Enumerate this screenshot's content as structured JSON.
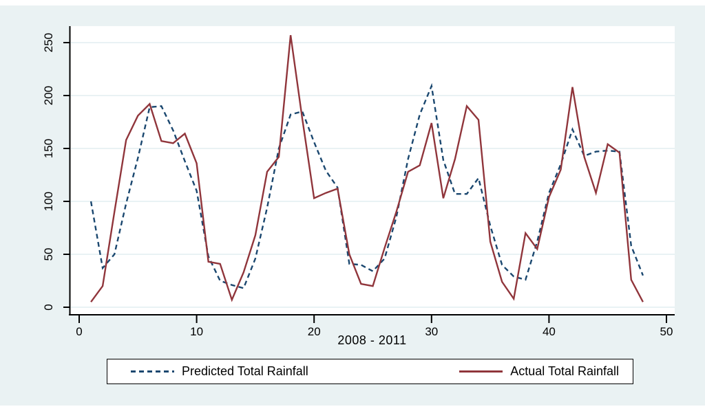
{
  "figure": {
    "background_color": "#eaf2f3",
    "plot_background_color": "#ffffff",
    "gridline_color": "#e2edf0",
    "axis_color": "#000000"
  },
  "chart_data": {
    "type": "line",
    "title": "",
    "xlabel": "2008 - 2011",
    "ylabel": "",
    "x_ticks": [
      0,
      10,
      20,
      30,
      40,
      50
    ],
    "y_ticks": [
      0,
      50,
      100,
      150,
      200,
      250
    ],
    "xlim": [
      -0.85,
      50.7
    ],
    "ylim": [
      -7,
      266
    ],
    "grid": "horizontal",
    "legend_position": "bottom",
    "x_start": 1,
    "x_step": 1,
    "series": [
      {
        "name": "Predicted Total Rainfall",
        "color": "#1a476f",
        "style": "dashed",
        "values": [
          100,
          37,
          50,
          98,
          141,
          189,
          190,
          167,
          138,
          110,
          48,
          25,
          21,
          18,
          46,
          94,
          150,
          182,
          185,
          156,
          129,
          113,
          41,
          40,
          34,
          46,
          85,
          140,
          182,
          209,
          139,
          107,
          107,
          122,
          77,
          40,
          29,
          26,
          62,
          108,
          135,
          168,
          143,
          147,
          148,
          147,
          58,
          30
        ]
      },
      {
        "name": "Actual Total Rainfall",
        "color": "#90353b",
        "style": "solid",
        "values": [
          5,
          20,
          90,
          158,
          181,
          192,
          157,
          155,
          164,
          136,
          43,
          41,
          7,
          33,
          68,
          128,
          142,
          257,
          178,
          103,
          108,
          112,
          50,
          22,
          20,
          56,
          90,
          128,
          134,
          174,
          103,
          140,
          190,
          177,
          62,
          24,
          8,
          70,
          55,
          104,
          130,
          208,
          142,
          108,
          154,
          146,
          26,
          5
        ]
      }
    ]
  },
  "legend": {
    "items": [
      {
        "label": "Predicted Total Rainfall",
        "style": "dashed",
        "color": "#1a476f"
      },
      {
        "label": "Actual Total Rainfall",
        "style": "solid",
        "color": "#90353b"
      }
    ]
  }
}
